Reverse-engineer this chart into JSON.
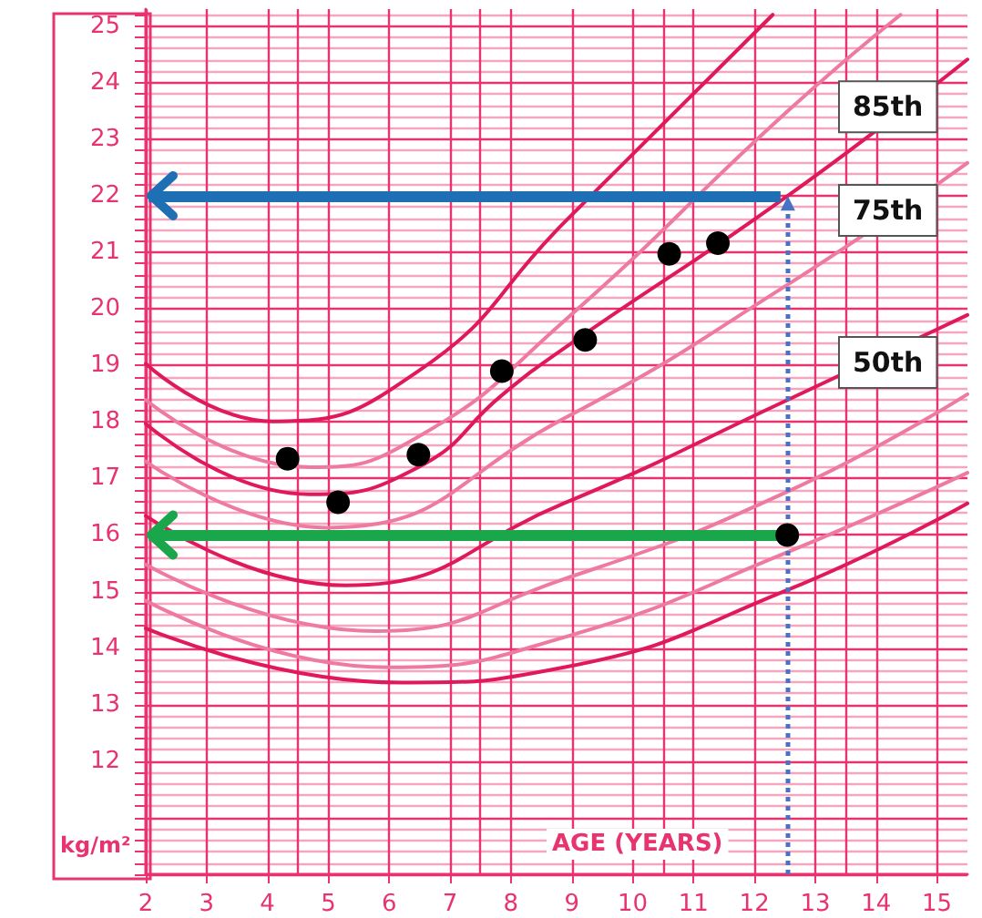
{
  "chart_data": {
    "type": "line",
    "xlabel": "AGE (YEARS)",
    "ylabel": "kg/m²",
    "xlim": [
      2,
      15.5
    ],
    "ylim": [
      10,
      25.3
    ],
    "xticks": [
      2,
      3,
      4,
      5,
      6,
      7,
      8,
      9,
      10,
      11,
      12,
      13,
      14,
      15
    ],
    "yticks": [
      {
        "value": 10,
        "label": null
      },
      {
        "value": 10.2,
        "label": null
      },
      {
        "value": 10.4,
        "label": null
      },
      {
        "value": 10.6,
        "label": null
      },
      {
        "value": 10.8,
        "label": null
      },
      {
        "value": 11,
        "label": null
      },
      {
        "value": 11.2,
        "label": null
      },
      {
        "value": 11.4,
        "label": null
      },
      {
        "value": 11.6,
        "label": null
      },
      {
        "value": 11.8,
        "label": null
      },
      12,
      {
        "value": 12.2,
        "label": null
      },
      {
        "value": 12.4,
        "label": null
      },
      {
        "value": 12.6,
        "label": null
      },
      {
        "value": 12.8,
        "label": null
      },
      13,
      {
        "value": 13.2,
        "label": null
      },
      {
        "value": 13.4,
        "label": null
      },
      {
        "value": 13.6,
        "label": null
      },
      {
        "value": 13.8,
        "label": null
      },
      14,
      {
        "value": 14.2,
        "label": null
      },
      {
        "value": 14.4,
        "label": null
      },
      {
        "value": 14.6,
        "label": null
      },
      {
        "value": 14.8,
        "label": null
      },
      15,
      {
        "value": 15.2,
        "label": null
      },
      {
        "value": 15.4,
        "label": null
      },
      {
        "value": 15.6,
        "label": null
      },
      {
        "value": 15.8,
        "label": null
      },
      16,
      {
        "value": 16.2,
        "label": null
      },
      {
        "value": 16.4,
        "label": null
      },
      {
        "value": 16.6,
        "label": null
      },
      {
        "value": 16.8,
        "label": null
      },
      17,
      {
        "value": 17.2,
        "label": null
      },
      {
        "value": 17.4,
        "label": null
      },
      {
        "value": 17.6,
        "label": null
      },
      {
        "value": 17.8,
        "label": null
      },
      18,
      {
        "value": 18.2,
        "label": null
      },
      {
        "value": 18.4,
        "label": null
      },
      {
        "value": 18.6,
        "label": null
      },
      {
        "value": 18.8,
        "label": null
      },
      19,
      {
        "value": 19.2,
        "label": null
      },
      {
        "value": 19.4,
        "label": null
      },
      {
        "value": 19.6,
        "label": null
      },
      {
        "value": 19.8,
        "label": null
      },
      20,
      {
        "value": 20.2,
        "label": null
      },
      {
        "value": 20.4,
        "label": null
      },
      {
        "value": 20.6,
        "label": null
      },
      {
        "value": 20.8,
        "label": null
      },
      21,
      {
        "value": 21.2,
        "label": null
      },
      {
        "value": 21.4,
        "label": null
      },
      {
        "value": 21.6,
        "label": null
      },
      {
        "value": 21.8,
        "label": null
      },
      22,
      {
        "value": 22.2,
        "label": null
      },
      {
        "value": 22.4,
        "label": null
      },
      {
        "value": 22.6,
        "label": null
      },
      {
        "value": 22.8,
        "label": null
      },
      23,
      {
        "value": 23.2,
        "label": null
      },
      {
        "value": 23.4,
        "label": null
      },
      {
        "value": 23.6,
        "label": null
      },
      {
        "value": 23.8,
        "label": null
      },
      24,
      {
        "value": 24.2,
        "label": null
      },
      {
        "value": 24.4,
        "label": null
      },
      {
        "value": 24.6,
        "label": null
      },
      {
        "value": 24.8,
        "label": null
      },
      25,
      {
        "value": 25.2,
        "label": null
      }
    ],
    "grid": true,
    "legend": false,
    "line_style": "solid",
    "series": [
      {
        "color": "#e0195a",
        "x": [
          2,
          4.1,
          6.48,
          8.87,
          12.3
        ],
        "values": [
          19.03,
          18.01,
          18.9,
          21.52,
          25.2
        ]
      },
      {
        "color": "#ee7aa0",
        "x": [
          2,
          4.69,
          6.48,
          8.87,
          12.55,
          14.4
        ],
        "values": [
          18.39,
          17.2,
          17.74,
          19.78,
          23.5,
          25.2
        ]
      },
      {
        "name": "85th",
        "color": "#e0195a",
        "x": [
          2,
          4.69,
          6.48,
          7.87,
          8.87,
          12.55,
          15.5
        ],
        "values": [
          17.97,
          16.72,
          17.2,
          18.49,
          19.3,
          22.0,
          24.41
        ]
      },
      {
        "name": "75th",
        "color": "#ee7aa0",
        "x": [
          2,
          4.99,
          8.87,
          12.55,
          15.5
        ],
        "values": [
          17.3,
          16.13,
          18.06,
          20.43,
          22.58
        ]
      },
      {
        "name": "50th",
        "color": "#e0195a",
        "x": [
          2,
          5.28,
          8.87,
          12.55,
          15.5
        ],
        "values": [
          16.34,
          15.11,
          16.56,
          18.39,
          19.89
        ]
      },
      {
        "color": "#ee7aa0",
        "x": [
          2,
          5.78,
          8.87,
          12.55,
          15.5
        ],
        "values": [
          15.48,
          14.3,
          15.22,
          16.77,
          18.49
        ]
      },
      {
        "color": "#ee7aa0",
        "x": [
          2,
          6,
          8.87,
          12.55,
          15.5
        ],
        "values": [
          14.84,
          13.66,
          14.19,
          15.7,
          17.1
        ]
      },
      {
        "color": "#e0195a",
        "x": [
          2,
          6.2,
          8.87,
          12.55,
          15.5
        ],
        "values": [
          14.35,
          13.39,
          13.66,
          15.03,
          16.56
        ]
      },
      {
        "type": "scatter",
        "marker": "circle",
        "color": "#000000",
        "x": [
          4.33,
          5.16,
          6.48,
          7.85,
          9.22,
          10.6,
          11.4,
          12.54
        ],
        "values": [
          17.35,
          16.58,
          17.42,
          18.9,
          19.45,
          20.97,
          21.16,
          16.0
        ]
      }
    ],
    "ref_lines": [
      {
        "axis": "y",
        "value": 22,
        "color": "#1f6fb5"
      },
      {
        "axis": "y",
        "value": 16,
        "color": "#1aa64a"
      },
      {
        "axis": "x",
        "value": 12.55,
        "color": "#4a72c4",
        "line_style": "dotted"
      }
    ]
  }
}
